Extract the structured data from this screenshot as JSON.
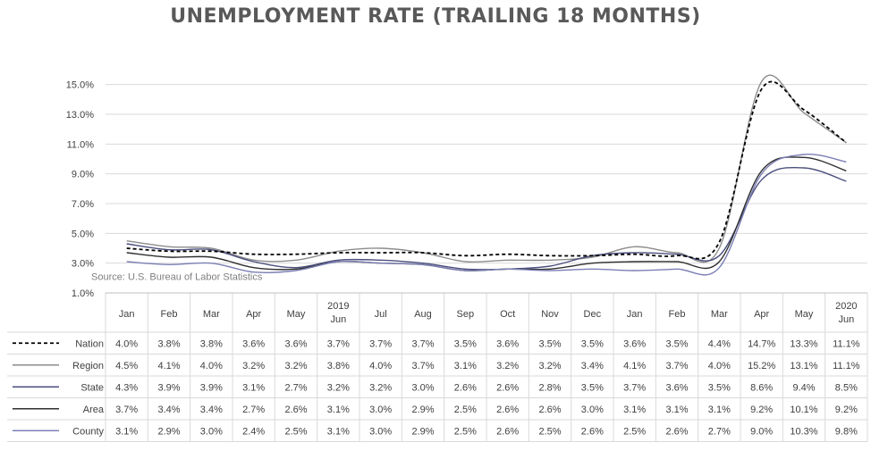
{
  "chart_data": {
    "type": "line",
    "title": "UNEMPLOYMENT RATE (TRAILING 18 MONTHS)",
    "source": "Source: U.S. Bureau of Labor Statistics",
    "categories": [
      [
        "Jan"
      ],
      [
        "Feb"
      ],
      [
        "Mar"
      ],
      [
        "Apr"
      ],
      [
        "May"
      ],
      [
        "2019",
        "Jun"
      ],
      [
        "Jul"
      ],
      [
        "Aug"
      ],
      [
        "Sep"
      ],
      [
        "Oct"
      ],
      [
        "Nov"
      ],
      [
        "Dec"
      ],
      [
        "Jan"
      ],
      [
        "Feb"
      ],
      [
        "Mar"
      ],
      [
        "Apr"
      ],
      [
        "May"
      ],
      [
        "2020",
        "Jun"
      ]
    ],
    "y_ticks": [
      "1.0%",
      "3.0%",
      "5.0%",
      "7.0%",
      "9.0%",
      "11.0%",
      "13.0%",
      "15.0%"
    ],
    "ylim": [
      1,
      16
    ],
    "grid": true,
    "legend_placement": "data table below chart",
    "series": [
      {
        "name": "Nation",
        "color": "#000000",
        "dash": true,
        "values": [
          4.0,
          3.8,
          3.8,
          3.6,
          3.6,
          3.7,
          3.7,
          3.7,
          3.5,
          3.6,
          3.5,
          3.5,
          3.6,
          3.5,
          4.4,
          14.7,
          13.3,
          11.1
        ],
        "labels": [
          "4.0%",
          "3.8%",
          "3.8%",
          "3.6%",
          "3.6%",
          "3.7%",
          "3.7%",
          "3.7%",
          "3.5%",
          "3.6%",
          "3.5%",
          "3.5%",
          "3.6%",
          "3.5%",
          "4.4%",
          "14.7%",
          "13.3%",
          "11.1%"
        ]
      },
      {
        "name": "Region",
        "color": "#8c8c8c",
        "dash": false,
        "values": [
          4.5,
          4.1,
          4.0,
          3.2,
          3.2,
          3.8,
          4.0,
          3.7,
          3.1,
          3.2,
          3.2,
          3.4,
          4.1,
          3.7,
          4.0,
          15.2,
          13.1,
          11.1
        ],
        "labels": [
          "4.5%",
          "4.1%",
          "4.0%",
          "3.2%",
          "3.2%",
          "3.8%",
          "4.0%",
          "3.7%",
          "3.1%",
          "3.2%",
          "3.2%",
          "3.4%",
          "4.1%",
          "3.7%",
          "4.0%",
          "15.2%",
          "13.1%",
          "11.1%"
        ]
      },
      {
        "name": "State",
        "color": "#4b4f7d",
        "dash": false,
        "values": [
          4.3,
          3.9,
          3.9,
          3.1,
          2.7,
          3.2,
          3.2,
          3.0,
          2.6,
          2.6,
          2.8,
          3.5,
          3.7,
          3.6,
          3.5,
          8.6,
          9.4,
          8.5
        ],
        "labels": [
          "4.3%",
          "3.9%",
          "3.9%",
          "3.1%",
          "2.7%",
          "3.2%",
          "3.2%",
          "3.0%",
          "2.6%",
          "2.6%",
          "2.8%",
          "3.5%",
          "3.7%",
          "3.6%",
          "3.5%",
          "8.6%",
          "9.4%",
          "8.5%"
        ]
      },
      {
        "name": "Area",
        "color": "#2f2f2f",
        "dash": false,
        "values": [
          3.7,
          3.4,
          3.4,
          2.7,
          2.6,
          3.1,
          3.0,
          2.9,
          2.5,
          2.6,
          2.6,
          3.0,
          3.1,
          3.1,
          3.1,
          9.2,
          10.1,
          9.2
        ],
        "labels": [
          "3.7%",
          "3.4%",
          "3.4%",
          "2.7%",
          "2.6%",
          "3.1%",
          "3.0%",
          "2.9%",
          "2.5%",
          "2.6%",
          "2.6%",
          "3.0%",
          "3.1%",
          "3.1%",
          "3.1%",
          "9.2%",
          "10.1%",
          "9.2%"
        ]
      },
      {
        "name": "County",
        "color": "#7b7fb5",
        "dash": false,
        "values": [
          3.1,
          2.9,
          3.0,
          2.4,
          2.5,
          3.1,
          3.0,
          2.9,
          2.5,
          2.6,
          2.5,
          2.6,
          2.5,
          2.6,
          2.7,
          9.0,
          10.3,
          9.8
        ],
        "labels": [
          "3.1%",
          "2.9%",
          "3.0%",
          "2.4%",
          "2.5%",
          "3.1%",
          "3.0%",
          "2.9%",
          "2.5%",
          "2.6%",
          "2.5%",
          "2.6%",
          "2.5%",
          "2.6%",
          "2.7%",
          "9.0%",
          "10.3%",
          "9.8%"
        ]
      }
    ]
  }
}
